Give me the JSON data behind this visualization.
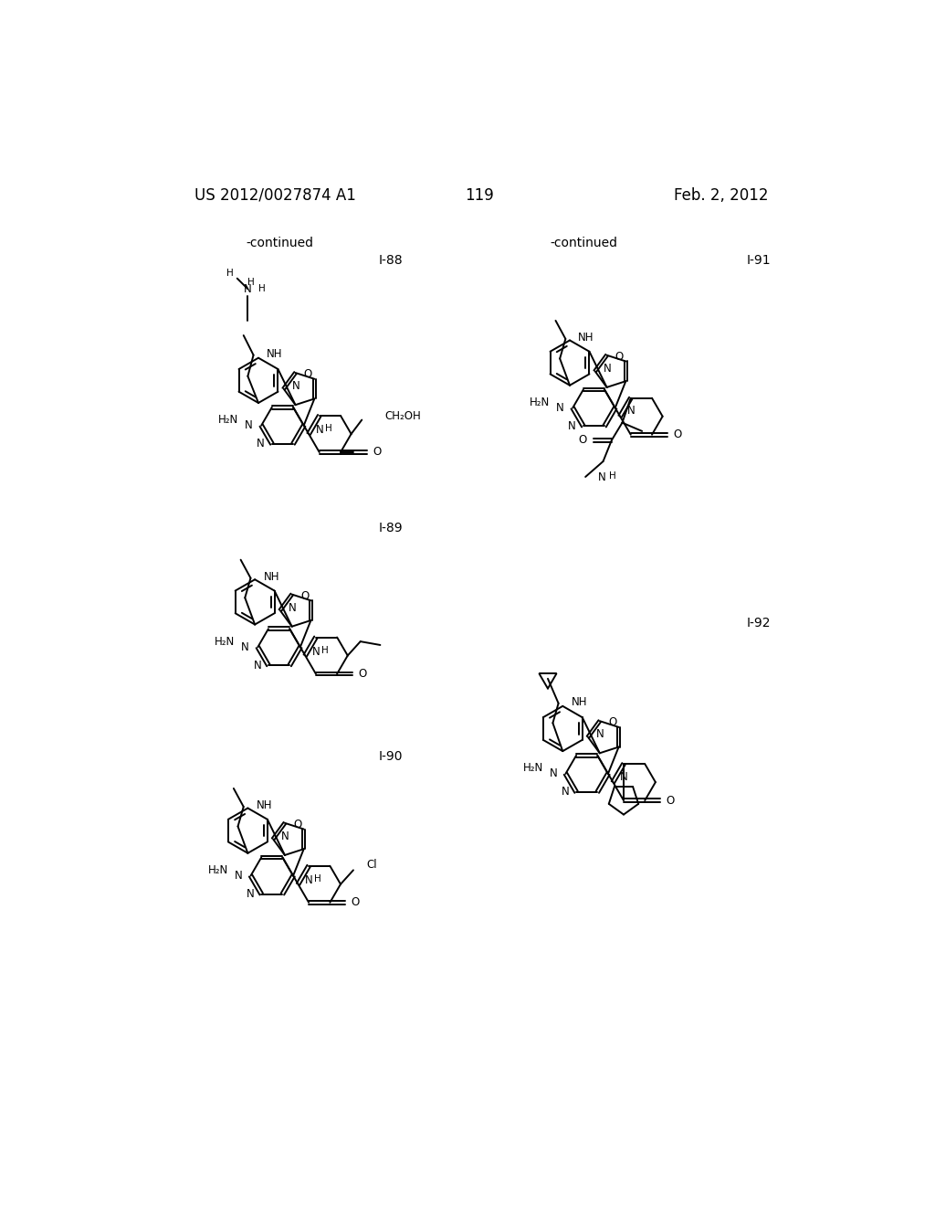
{
  "page_number": "119",
  "patent_number": "US 2012/0027874 A1",
  "date": "Feb. 2, 2012",
  "background_color": "#ffffff",
  "text_color": "#000000",
  "continued_left": "-continued",
  "continued_right": "-continued",
  "compound_labels": [
    "I-88",
    "I-89",
    "I-90",
    "I-91",
    "I-92"
  ],
  "font_size_header": 12,
  "font_size_label": 10,
  "font_size_atom": 8.5,
  "line_width": 1.4
}
